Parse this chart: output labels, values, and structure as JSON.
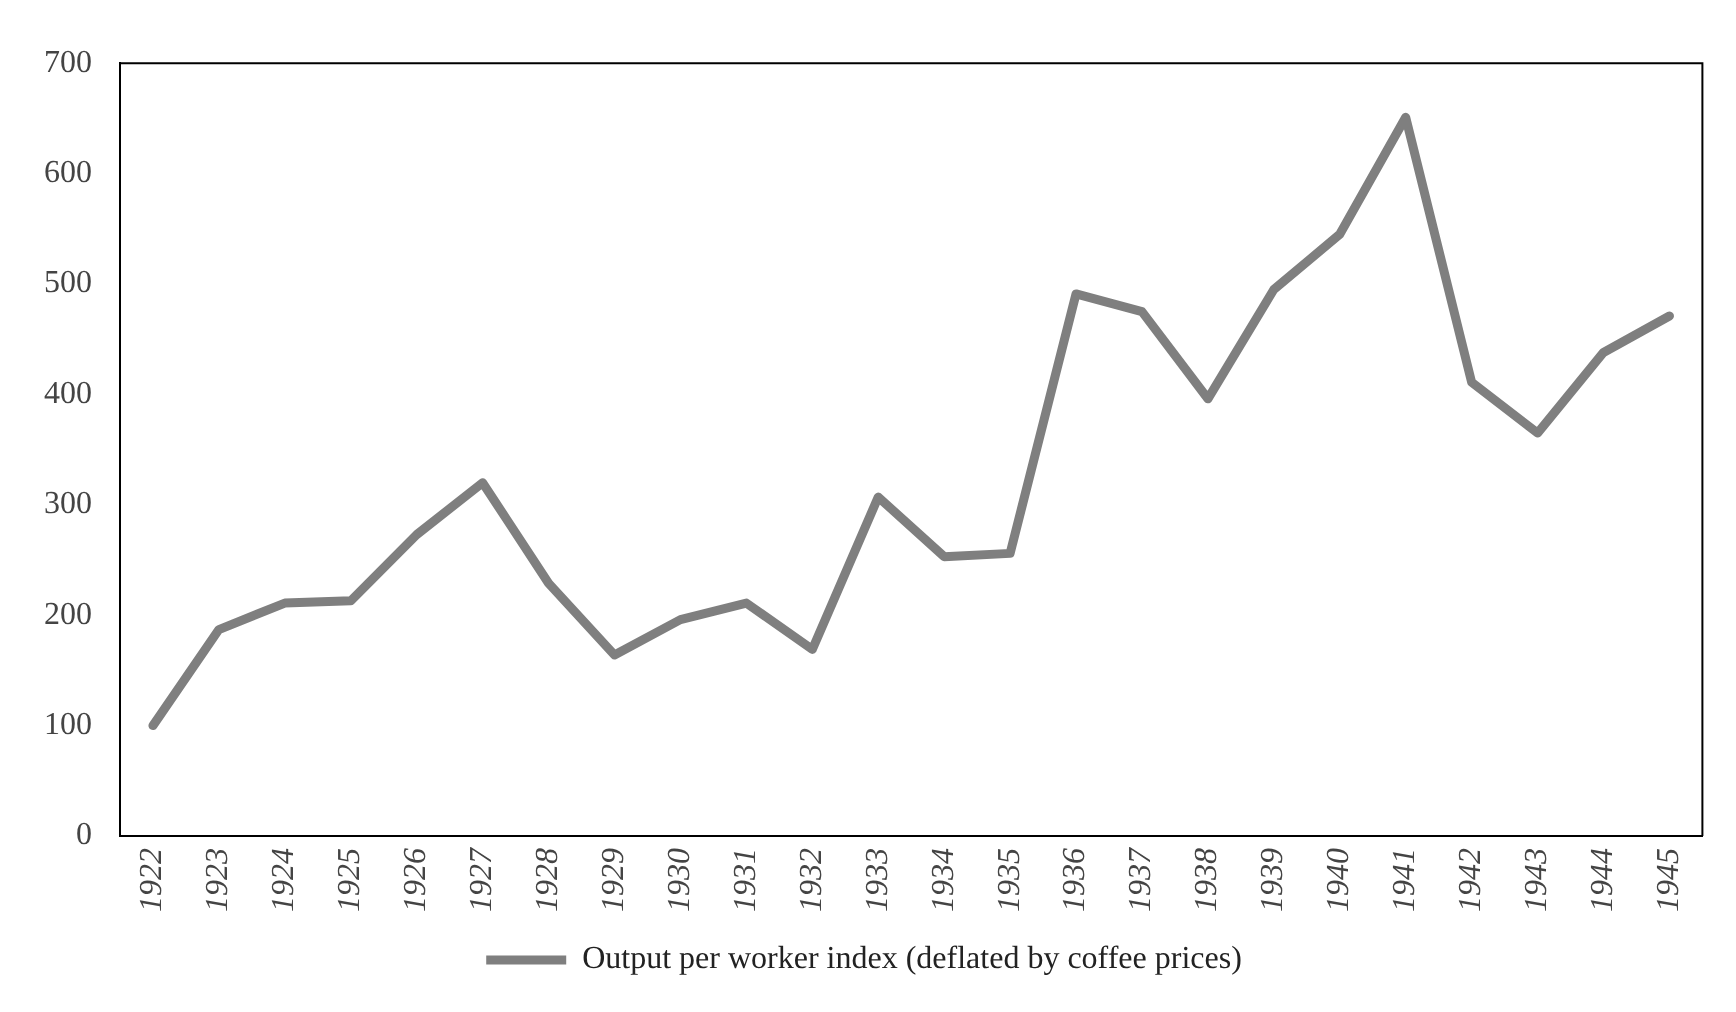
{
  "chart_data": {
    "type": "line",
    "categories": [
      "1922",
      "1923",
      "1924",
      "1925",
      "1926",
      "1927",
      "1928",
      "1929",
      "1930",
      "1931",
      "1932",
      "1933",
      "1934",
      "1935",
      "1936",
      "1937",
      "1938",
      "1939",
      "1940",
      "1941",
      "1942",
      "1943",
      "1944",
      "1945"
    ],
    "series": [
      {
        "name": "Output per worker index (deflated by coffee prices)",
        "color": "#7f7f7f",
        "values": [
          100,
          187,
          211,
          213,
          273,
          320,
          229,
          164,
          196,
          211,
          169,
          307,
          253,
          256,
          491,
          475,
          396,
          495,
          545,
          651,
          411,
          365,
          438,
          471
        ]
      }
    ],
    "ylim": [
      0,
      700
    ],
    "yticks": [
      0,
      100,
      200,
      300,
      400,
      500,
      600,
      700
    ],
    "grid": false,
    "legend": "bottom",
    "marker": "none",
    "line_style": "solid"
  }
}
